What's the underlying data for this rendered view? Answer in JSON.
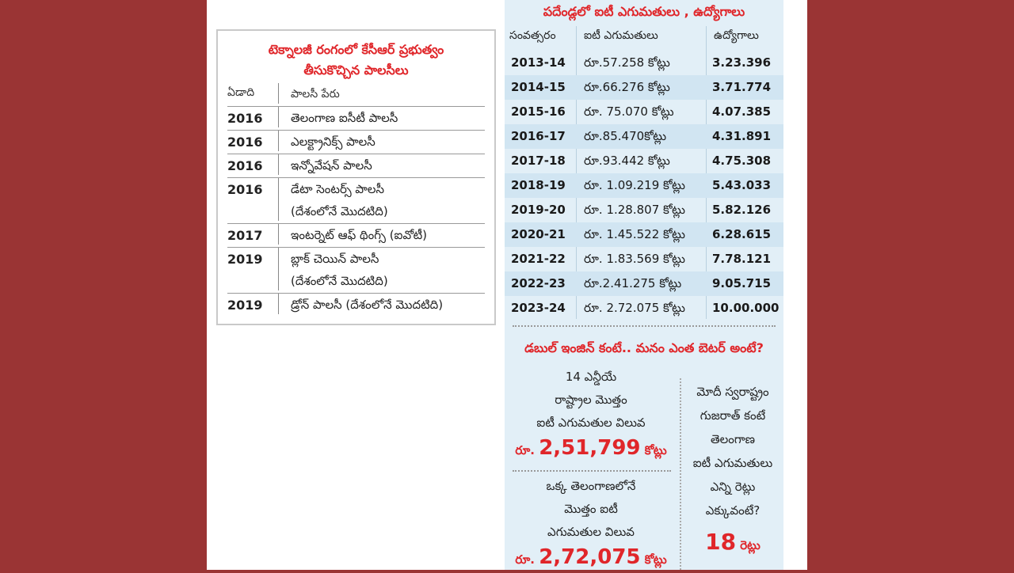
{
  "policy_box": {
    "title_line1": "టెక్నాలజీ రంగంలో కేసీఆర్ ప్రభుత్వం",
    "title_line2": "తీసుకొచ్చిన పాలసీలు",
    "header": {
      "year": "ఏడాది",
      "name": "పాలసీ పేరు"
    },
    "rows": [
      {
        "year": "2016",
        "name": "తెలంగాణ ఐసీటీ పాలసీ",
        "name2": ""
      },
      {
        "year": "2016",
        "name": "ఎలక్ట్రానిక్స్ పాలసీ",
        "name2": ""
      },
      {
        "year": "2016",
        "name": "ఇన్నోవేషన్ పాలసీ",
        "name2": ""
      },
      {
        "year": "2016",
        "name": "డేటా సెంటర్స్ పాలసీ",
        "name2": "(దేశంలోనే మొదటిది)"
      },
      {
        "year": "2017",
        "name": "ఇంటర్నెట్ ఆఫ్ థింగ్స్ (ఐవోటీ)",
        "name2": ""
      },
      {
        "year": "2019",
        "name": "బ్లాక్ చెయిన్ పాలసీ",
        "name2": "(దేశంలోనే మొదటిది)"
      },
      {
        "year": "2019",
        "name": "డ్రోన్ పాలసీ (దేశంలోనే మొదటిది)",
        "name2": ""
      }
    ]
  },
  "exports_table": {
    "title": "పదేండ్లలో ఐటీ ఎగుమతులు , ఉద్యోగాలు",
    "headers": [
      "సంవత్సరం",
      "ఐటీ ఎగుమతులు",
      "ఉద్యోగాలు"
    ],
    "rows": [
      [
        "2013-14",
        "రూ.57.258 కోట్లు",
        "3.23.396"
      ],
      [
        "2014-15",
        "రూ.66.276 కోట్లు",
        "3.71.774"
      ],
      [
        "2015-16",
        "రూ. 75.070 కోట్లు",
        "4.07.385"
      ],
      [
        "2016-17",
        "రూ.85.470కోట్లు",
        "4.31.891"
      ],
      [
        "2017-18",
        "రూ.93.442 కోట్లు",
        "4.75.308"
      ],
      [
        "2018-19",
        "రూ. 1.09.219 కోట్లు",
        "5.43.033"
      ],
      [
        "2019-20",
        "రూ. 1.28.807 కోట్లు",
        "5.82.126"
      ],
      [
        "2020-21",
        "రూ. 1.45.522 కోట్లు",
        "6.28.615"
      ],
      [
        "2021-22",
        "రూ. 1.83.569 కోట్లు",
        "7.78.121"
      ],
      [
        "2022-23",
        "రూ.2.41.275 కోట్లు",
        "9.05.715"
      ],
      [
        "2023-24",
        "రూ. 2.72.075 కోట్లు",
        "10.00.000"
      ]
    ]
  },
  "comparison": {
    "title": "డబుల్ ఇంజిన్ కంటే.. మనం ఎంత బెటర్ అంటే?",
    "nda": {
      "lines": [
        "14 ఎన్డీయే",
        "రాష్ట్రాల మొత్తం",
        "ఐటీ ఎగుమతుల విలువ"
      ],
      "prefix": "రూ.",
      "amount": "2,51,799",
      "unit": "కోట్లు"
    },
    "telangana": {
      "lines": [
        "ఒక్క తెలంగాణలోనే",
        "మొత్తం ఐటీ",
        "ఎగుమతుల విలువ"
      ],
      "prefix": "రూ.",
      "amount": "2,72,075",
      "unit": "కోట్లు"
    },
    "gujarat": {
      "lines": [
        "మోదీ స్వరాష్ట్రం",
        "గుజరాత్ కంటే",
        "తెలంగాణ",
        "ఐటీ ఎగుమతులు",
        "ఎన్ని రెట్లు",
        "ఎక్కువంటే?"
      ],
      "number": "18",
      "unit": "రెట్లు"
    }
  }
}
